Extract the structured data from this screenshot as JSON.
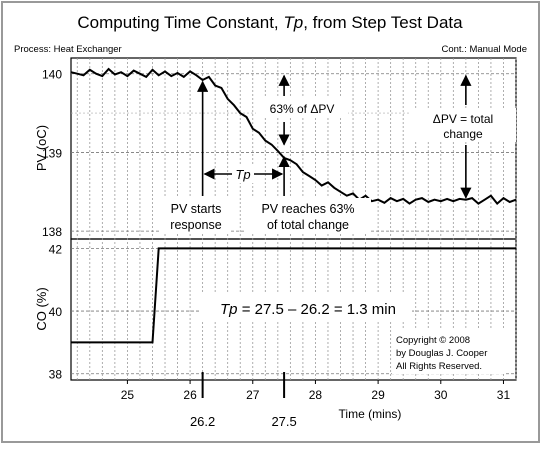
{
  "chart_data": {
    "type": "line",
    "title_prefix": "Computing Time Constant, ",
    "title_symbol": "Tp",
    "title_suffix": ", from Step Test Data",
    "process_label": "Process: Heat Exchanger",
    "controller_label": "Cont.: Manual Mode",
    "xlabel": "Time (mins)",
    "xlim": [
      24.1,
      31.2
    ],
    "x_ticks": [
      25,
      26,
      27,
      28,
      29,
      30,
      31
    ],
    "panels": [
      {
        "id": "pv",
        "ylabel": "PV (oC)",
        "ylim": [
          137.9,
          140.2
        ],
        "y_ticks": [
          138,
          139,
          140
        ],
        "series": {
          "x": [
            24.1,
            24.2,
            24.3,
            24.4,
            24.5,
            24.6,
            24.7,
            24.8,
            24.9,
            25.0,
            25.1,
            25.2,
            25.3,
            25.4,
            25.5,
            25.6,
            25.7,
            25.8,
            25.9,
            26.0,
            26.1,
            26.2,
            26.3,
            26.4,
            26.5,
            26.6,
            26.7,
            26.8,
            26.9,
            27.0,
            27.1,
            27.2,
            27.3,
            27.4,
            27.5,
            27.6,
            27.7,
            27.8,
            27.9,
            28.0,
            28.1,
            28.2,
            28.3,
            28.4,
            28.5,
            28.6,
            28.7,
            28.8,
            28.9,
            29.0,
            29.1,
            29.2,
            29.3,
            29.4,
            29.5,
            29.6,
            29.7,
            29.8,
            29.9,
            30.0,
            30.1,
            30.2,
            30.3,
            30.4,
            30.5,
            30.6,
            30.7,
            30.8,
            30.9,
            31.0,
            31.1,
            31.2
          ],
          "y": [
            140.02,
            140.0,
            139.98,
            140.05,
            140.0,
            139.97,
            140.06,
            139.99,
            140.02,
            139.97,
            140.04,
            140.0,
            139.96,
            140.05,
            139.98,
            140.03,
            139.97,
            140.01,
            139.96,
            140.03,
            139.98,
            139.92,
            139.96,
            139.85,
            139.82,
            139.68,
            139.6,
            139.5,
            139.45,
            139.3,
            139.25,
            139.15,
            139.1,
            139.02,
            138.93,
            138.9,
            138.85,
            138.75,
            138.7,
            138.65,
            138.58,
            138.62,
            138.55,
            138.5,
            138.45,
            138.48,
            138.4,
            138.45,
            138.38,
            138.4,
            138.36,
            138.42,
            138.38,
            138.41,
            138.35,
            138.4,
            138.42,
            138.37,
            138.4,
            138.38,
            138.41,
            138.38,
            138.41,
            138.4,
            138.42,
            138.35,
            138.4,
            138.45,
            138.35,
            138.42,
            138.37,
            138.4
          ]
        },
        "annotations": {
          "pct_label": "63% of ΔPV",
          "delta_label_1": "ΔPV = total",
          "delta_label_2": "change",
          "tp_label": "Tp",
          "start_label_1": "PV starts",
          "start_label_2": "response",
          "reach_label_1": "PV reaches 63%",
          "reach_label_2": "of total change",
          "t_start": 26.2,
          "t_63": 27.5,
          "pv_initial": 140.0,
          "pv_final": 138.4
        }
      },
      {
        "id": "co",
        "ylabel": "CO (%)",
        "ylim": [
          37.8,
          42.3
        ],
        "y_ticks": [
          38,
          40,
          42
        ],
        "series": {
          "x": [
            24.1,
            25.4,
            25.5,
            31.2
          ],
          "y": [
            39.0,
            39.0,
            42.0,
            42.0
          ]
        },
        "annotations": {
          "equation_symbol": "Tp",
          "equation_text": " = 27.5 – 26.2 = 1.3 min",
          "copyright_1": "Copyright © 2008",
          "copyright_2": "by Douglas J. Cooper",
          "copyright_3": "All Rights Reserved."
        }
      }
    ],
    "marker_labels": [
      "26.2",
      "27.5"
    ]
  }
}
